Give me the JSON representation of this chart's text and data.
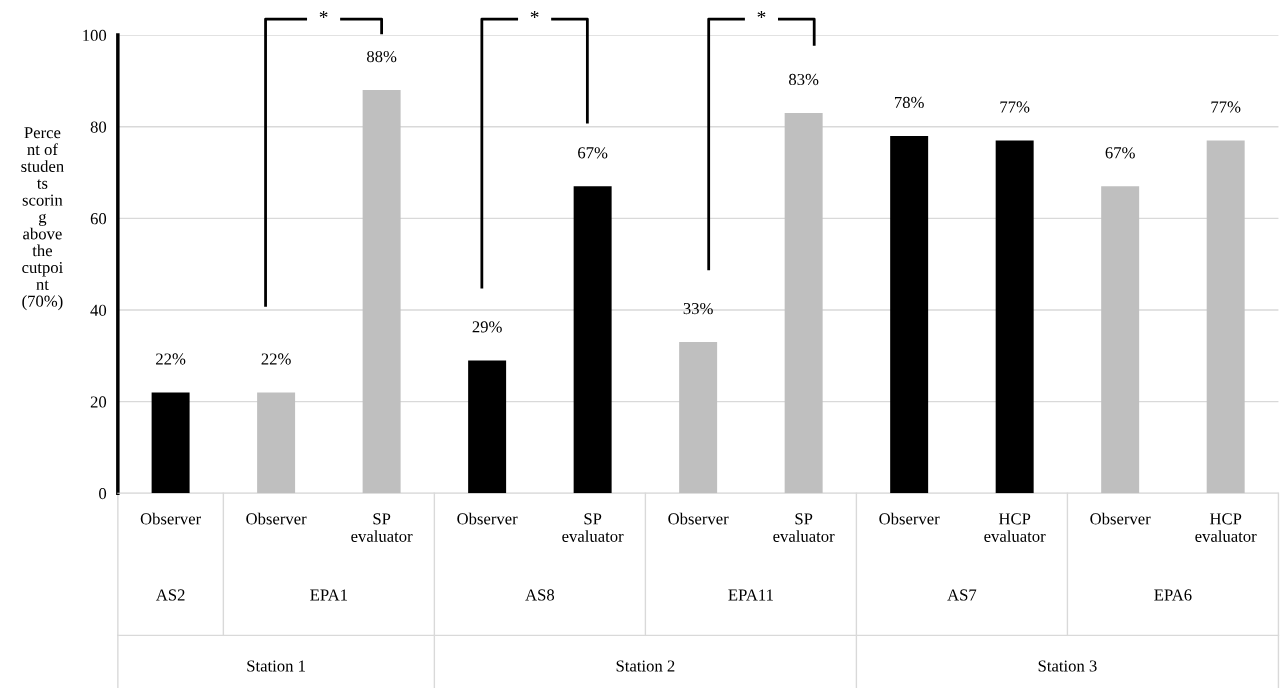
{
  "chart_data": {
    "type": "bar",
    "ylabel": "Perce\nnt of\nstuden\nts\nscorin\ng\nabove\nthe\ncutpoi\nnt\n(70%)",
    "categories": [
      "Observer",
      "Observer",
      "SP\nevaluator",
      "Observer",
      "SP\nevaluator",
      "Observer",
      "SP\nevaluator",
      "Observer",
      "HCP\nevaluator",
      "Observer",
      "HCP\nevaluator"
    ],
    "values": [
      22,
      22,
      88,
      29,
      67,
      33,
      83,
      78,
      77,
      67,
      77
    ],
    "colors": [
      "#000000",
      "#bfbfbf",
      "#bfbfbf",
      "#000000",
      "#000000",
      "#bfbfbf",
      "#bfbfbf",
      "#000000",
      "#000000",
      "#bfbfbf",
      "#bfbfbf"
    ],
    "value_labels": [
      "22%",
      "22%",
      "88%",
      "29%",
      "67%",
      "33%",
      "83%",
      "78%",
      "77%",
      "67%",
      "77%"
    ],
    "ylim": [
      0,
      100
    ],
    "yticks": [
      0,
      20,
      40,
      60,
      80,
      100
    ],
    "grid": "y",
    "annotations": [
      "*",
      "*",
      "*",
      "AS2",
      "EPA1",
      "AS8",
      "EPA11",
      "AS7",
      "EPA6",
      "Station 1",
      "Station 2",
      "Station 3"
    ]
  }
}
